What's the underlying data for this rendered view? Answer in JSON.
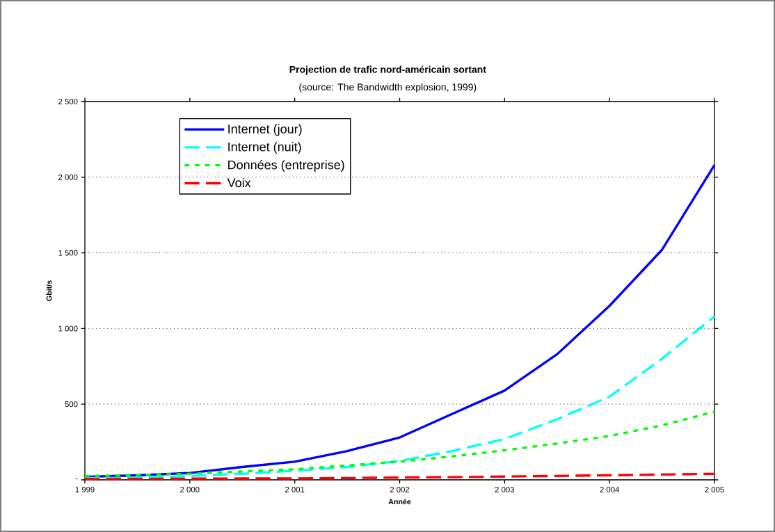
{
  "chart_data": {
    "type": "line",
    "title": "Projection de trafic nord-américain sortant",
    "subtitle": "(source: The Bandwidth explosion, 1999)",
    "xlabel": "Année",
    "ylabel": "Gbit/s",
    "xlim": [
      1999,
      2005
    ],
    "xticks": [
      {
        "value": 1999,
        "label": "1 999"
      },
      {
        "value": 2000,
        "label": "2 000"
      },
      {
        "value": 2001,
        "label": "2 001"
      },
      {
        "value": 2002,
        "label": "2 002"
      },
      {
        "value": 2003,
        "label": "2 003"
      },
      {
        "value": 2004,
        "label": "2 004"
      },
      {
        "value": 2005,
        "label": "2 005"
      }
    ],
    "ylim": [
      0,
      2500
    ],
    "yticks": [
      {
        "value": 0,
        "label": "-"
      },
      500,
      {
        "value": 1000,
        "label": "1 000"
      },
      {
        "value": 1500,
        "label": "1 500"
      },
      {
        "value": 2000,
        "label": "2 000"
      },
      {
        "value": 2500,
        "label": "2 500"
      }
    ],
    "grid": "y",
    "legend": "top left",
    "x": [
      1999,
      1999.5,
      2000,
      2000.5,
      2001,
      2001.5,
      2002,
      2002.5,
      2003,
      2003.5,
      2004,
      2004.5,
      2005
    ],
    "series": [
      {
        "name": "Internet (jour)",
        "color": "#0000ff",
        "line_style": "solid",
        "values": [
          20,
          30,
          45,
          85,
          120,
          190,
          280,
          435,
          590,
          830,
          1150,
          1520,
          2080
        ]
      },
      {
        "name": "Internet (nuit)",
        "color": "#00ffff",
        "line_style": "dashed",
        "values": [
          10,
          15,
          25,
          40,
          60,
          85,
          125,
          190,
          270,
          400,
          550,
          800,
          1080
        ]
      },
      {
        "name": "Données (entreprise)",
        "color": "#00ff00",
        "line_style": "dotted",
        "values": [
          25,
          32,
          40,
          55,
          70,
          95,
          120,
          155,
          195,
          240,
          290,
          360,
          450
        ]
      },
      {
        "name": "Voix",
        "color": "#ff0000",
        "line_style": "dashed",
        "values": [
          5,
          6,
          8,
          9,
          10,
          12,
          15,
          18,
          22,
          26,
          30,
          35,
          40
        ]
      }
    ]
  }
}
